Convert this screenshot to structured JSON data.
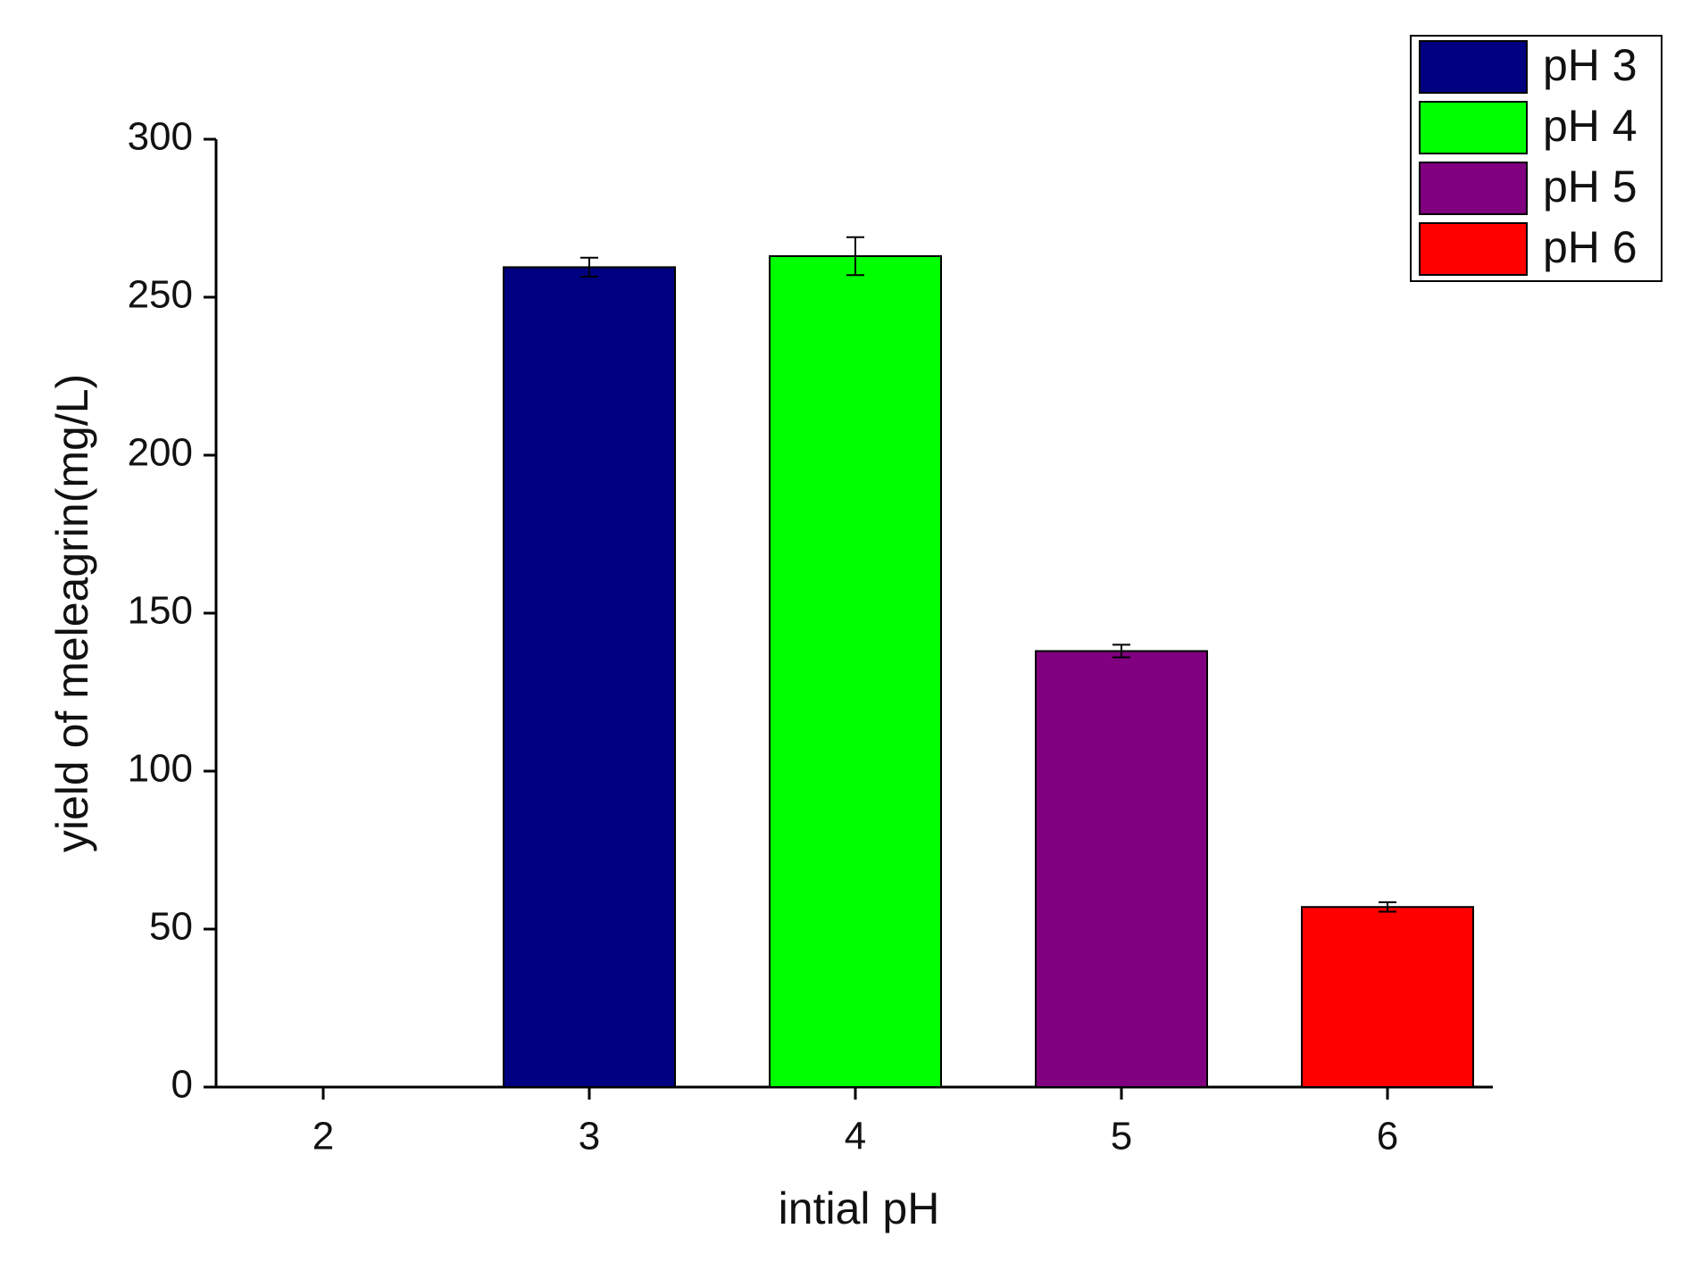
{
  "chart_data": {
    "type": "bar",
    "x_label": "intial pH",
    "y_label": "yield of meleagrin(mg/L)",
    "categories": [
      "2",
      "3",
      "4",
      "5",
      "6"
    ],
    "series": [
      {
        "name": "pH 3",
        "color": "#000080",
        "values": [
          null,
          259.5,
          null,
          null,
          null
        ],
        "errors": [
          null,
          3,
          null,
          null,
          null
        ]
      },
      {
        "name": "pH 4",
        "color": "#00ff00",
        "values": [
          null,
          null,
          263,
          null,
          null
        ],
        "errors": [
          null,
          null,
          6,
          null,
          null
        ]
      },
      {
        "name": "pH 5",
        "color": "#800080",
        "values": [
          null,
          null,
          null,
          138,
          null
        ],
        "errors": [
          null,
          null,
          null,
          2,
          null
        ]
      },
      {
        "name": "pH 6",
        "color": "#ff0000",
        "values": [
          null,
          null,
          null,
          null,
          57
        ],
        "errors": [
          null,
          null,
          null,
          null,
          1.5
        ]
      }
    ],
    "ylim": [
      0,
      300
    ],
    "yticks": [
      0,
      50,
      100,
      150,
      200,
      250,
      300
    ],
    "legend": "top-right"
  }
}
